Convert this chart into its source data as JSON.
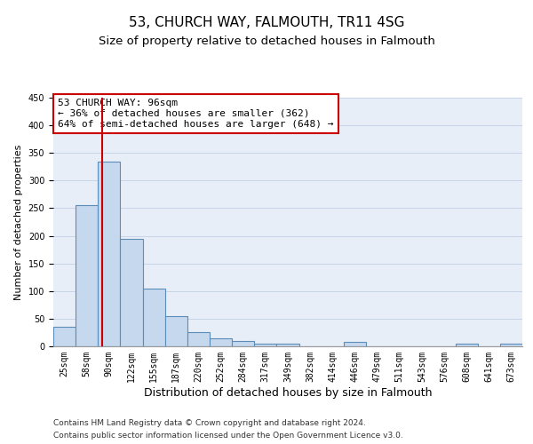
{
  "title1": "53, CHURCH WAY, FALMOUTH, TR11 4SG",
  "title2": "Size of property relative to detached houses in Falmouth",
  "xlabel": "Distribution of detached houses by size in Falmouth",
  "ylabel": "Number of detached properties",
  "categories": [
    "25sqm",
    "58sqm",
    "90sqm",
    "122sqm",
    "155sqm",
    "187sqm",
    "220sqm",
    "252sqm",
    "284sqm",
    "317sqm",
    "349sqm",
    "382sqm",
    "414sqm",
    "446sqm",
    "479sqm",
    "511sqm",
    "543sqm",
    "576sqm",
    "608sqm",
    "641sqm",
    "673sqm"
  ],
  "values": [
    35,
    255,
    335,
    195,
    105,
    55,
    25,
    15,
    10,
    5,
    5,
    0,
    0,
    8,
    0,
    0,
    0,
    0,
    5,
    0,
    5
  ],
  "bar_color": "#c5d8ed",
  "bar_edge_color": "#5b8db8",
  "bar_linewidth": 0.8,
  "property_line_color": "#cc0000",
  "annotation_text": "53 CHURCH WAY: 96sqm\n← 36% of detached houses are smaller (362)\n64% of semi-detached houses are larger (648) →",
  "annotation_box_color": "#ffffff",
  "annotation_box_edge": "#cc0000",
  "ylim": [
    0,
    450
  ],
  "yticks": [
    0,
    50,
    100,
    150,
    200,
    250,
    300,
    350,
    400,
    450
  ],
  "grid_color": "#c8d4e8",
  "background_color": "#e8eef8",
  "footer1": "Contains HM Land Registry data © Crown copyright and database right 2024.",
  "footer2": "Contains public sector information licensed under the Open Government Licence v3.0.",
  "title1_fontsize": 11,
  "title2_fontsize": 9.5,
  "xlabel_fontsize": 9,
  "ylabel_fontsize": 8,
  "tick_fontsize": 7,
  "annotation_fontsize": 8,
  "footer_fontsize": 6.5
}
